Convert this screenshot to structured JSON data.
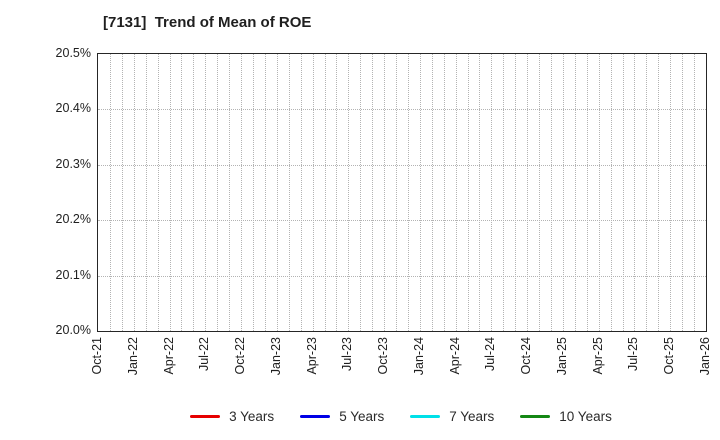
{
  "title": "[7131]  Trend of Mean of ROE",
  "chart_data": {
    "type": "line",
    "title": "[7131]  Trend of Mean of ROE",
    "xlabel": "",
    "ylabel": "",
    "x_tick_labels": [
      "Oct-21",
      "Jan-22",
      "Apr-22",
      "Jul-22",
      "Oct-22",
      "Jan-23",
      "Apr-23",
      "Jul-23",
      "Oct-23",
      "Jan-24",
      "Apr-24",
      "Jul-24",
      "Oct-24",
      "Jan-25",
      "Apr-25",
      "Jul-25",
      "Oct-25",
      "Jan-26"
    ],
    "major_tick_interval_months": 3,
    "minor_gridline_interval_months": 1,
    "y_tick_labels": [
      "20.0%",
      "20.1%",
      "20.2%",
      "20.3%",
      "20.4%",
      "20.5%"
    ],
    "ylim": [
      20.0,
      20.5
    ],
    "grid": true,
    "grid_style": "dotted",
    "legend_position": "bottom",
    "plot_note": "no data points visible within axis range",
    "series": [
      {
        "name": "3 Years",
        "color": "#e60000",
        "values": []
      },
      {
        "name": "5 Years",
        "color": "#0000e6",
        "values": []
      },
      {
        "name": "7 Years",
        "color": "#00e0e8",
        "values": []
      },
      {
        "name": "10 Years",
        "color": "#148714",
        "values": []
      }
    ]
  }
}
